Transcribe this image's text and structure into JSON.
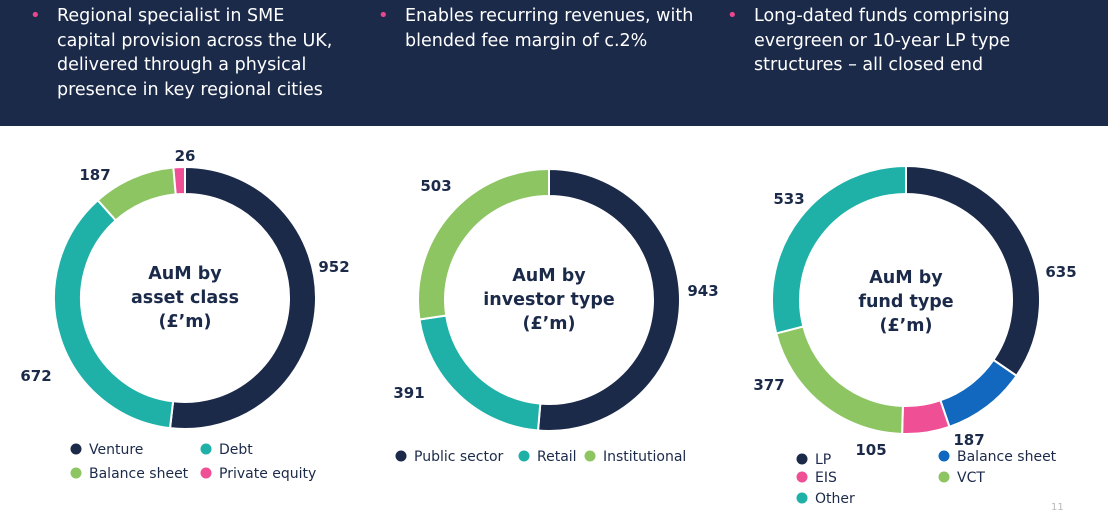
{
  "banner": {
    "bullets": [
      [
        "Regional specialist in SME",
        "capital provision across the UK,",
        "delivered through a physical",
        "presence in key regional cities"
      ],
      [
        "Enables recurring revenues, with",
        "blended fee margin of c.2%"
      ],
      [
        "Long-dated funds comprising",
        "evergreen or 10-year LP type",
        "structures – all closed end"
      ]
    ],
    "bullet_symbol": "•"
  },
  "colors": {
    "navy": "#1c2a4a",
    "teal": "#1fb1a8",
    "green": "#8dc563",
    "pink": "#ef4f94",
    "blue": "#1168be"
  },
  "chart_data": [
    {
      "type": "pie",
      "title": [
        "AuM by",
        "asset class",
        "(£’m)"
      ],
      "categories": [
        "Venture",
        "Debt",
        "Balance sheet",
        "Private equity"
      ],
      "values": [
        952,
        672,
        187,
        26
      ],
      "colors": [
        "#1c2a4a",
        "#1fb1a8",
        "#8dc563",
        "#ef4f94"
      ],
      "legend": "bottom"
    },
    {
      "type": "pie",
      "title": [
        "AuM by",
        "investor type",
        "(£’m)"
      ],
      "categories": [
        "Public sector",
        "Retail",
        "Institutional"
      ],
      "values": [
        943,
        391,
        503
      ],
      "colors": [
        "#1c2a4a",
        "#1fb1a8",
        "#8dc563"
      ],
      "legend": "bottom"
    },
    {
      "type": "pie",
      "title": [
        "AuM by",
        "fund type",
        "(£’m)"
      ],
      "categories": [
        "LP",
        "Balance sheet",
        "EIS",
        "VCT",
        "Other"
      ],
      "values": [
        635,
        187,
        105,
        377,
        533
      ],
      "order": [
        "LP",
        "Balance sheet",
        "EIS",
        "VCT",
        "Other"
      ],
      "colors": [
        "#1c2a4a",
        "#1168be",
        "#ef4f94",
        "#8dc563",
        "#1fb1a8"
      ],
      "legend": "bottom"
    }
  ],
  "page_number": "11"
}
